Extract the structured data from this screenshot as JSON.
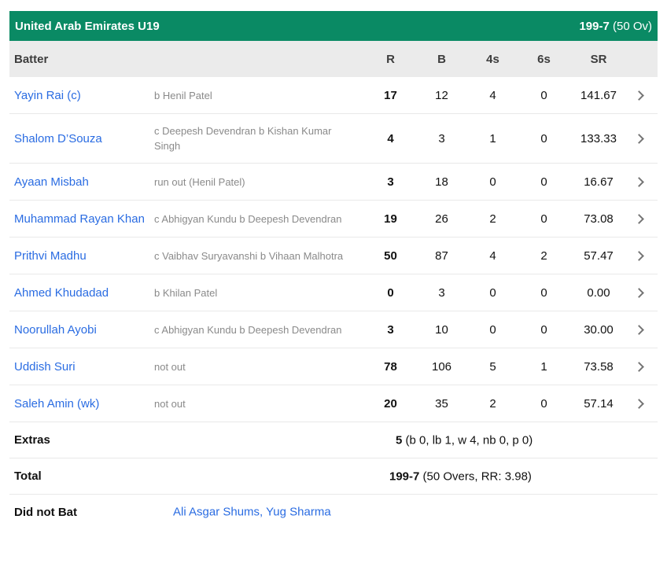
{
  "theme": {
    "header_green": "#0a8a64",
    "link_blue": "#2a6ce2",
    "muted_gray": "#8a8a8a",
    "thead_bg": "#ebebeb"
  },
  "header": {
    "team": "United Arab Emirates U19",
    "score": "199-7",
    "overs": " (50 Ov)"
  },
  "columns": {
    "batter": "Batter",
    "runs": "R",
    "balls": "B",
    "fours": "4s",
    "sixes": "6s",
    "strike_rate": "SR"
  },
  "icons": {
    "row_expand": "chevron-right-icon"
  },
  "batters": [
    {
      "name": "Yayin Rai (c)",
      "dismissal": "b Henil Patel",
      "r": "17",
      "b": "12",
      "fours": "4",
      "sixes": "0",
      "sr": "141.67"
    },
    {
      "name": "Shalom D’Souza",
      "dismissal": "c Deepesh Devendran b Kishan Kumar Singh",
      "r": "4",
      "b": "3",
      "fours": "1",
      "sixes": "0",
      "sr": "133.33"
    },
    {
      "name": "Ayaan Misbah",
      "dismissal": "run out (Henil Patel)",
      "r": "3",
      "b": "18",
      "fours": "0",
      "sixes": "0",
      "sr": "16.67"
    },
    {
      "name": "Muhammad Rayan Khan",
      "dismissal": "c Abhigyan Kundu b Deepesh Devendran",
      "r": "19",
      "b": "26",
      "fours": "2",
      "sixes": "0",
      "sr": "73.08"
    },
    {
      "name": "Prithvi Madhu",
      "dismissal": "c Vaibhav Suryavanshi b Vihaan Malhotra",
      "r": "50",
      "b": "87",
      "fours": "4",
      "sixes": "2",
      "sr": "57.47"
    },
    {
      "name": "Ahmed Khudadad",
      "dismissal": "b Khilan Patel",
      "r": "0",
      "b": "3",
      "fours": "0",
      "sixes": "0",
      "sr": "0.00"
    },
    {
      "name": "Noorullah Ayobi",
      "dismissal": "c Abhigyan Kundu b Deepesh Devendran",
      "r": "3",
      "b": "10",
      "fours": "0",
      "sixes": "0",
      "sr": "30.00"
    },
    {
      "name": "Uddish Suri",
      "dismissal": "not out",
      "r": "78",
      "b": "106",
      "fours": "5",
      "sixes": "1",
      "sr": "73.58"
    },
    {
      "name": "Saleh Amin (wk)",
      "dismissal": "not out",
      "r": "20",
      "b": "35",
      "fours": "2",
      "sixes": "0",
      "sr": "57.14"
    }
  ],
  "extras": {
    "label": "Extras",
    "value": "5",
    "detail": " (b 0, lb 1, w 4, nb 0, p 0)"
  },
  "total": {
    "label": "Total",
    "value": "199-7",
    "detail": " (50 Overs, RR: 3.98)"
  },
  "did_not_bat": {
    "label": "Did not Bat",
    "players": "Ali Asgar Shums, Yug Sharma"
  }
}
